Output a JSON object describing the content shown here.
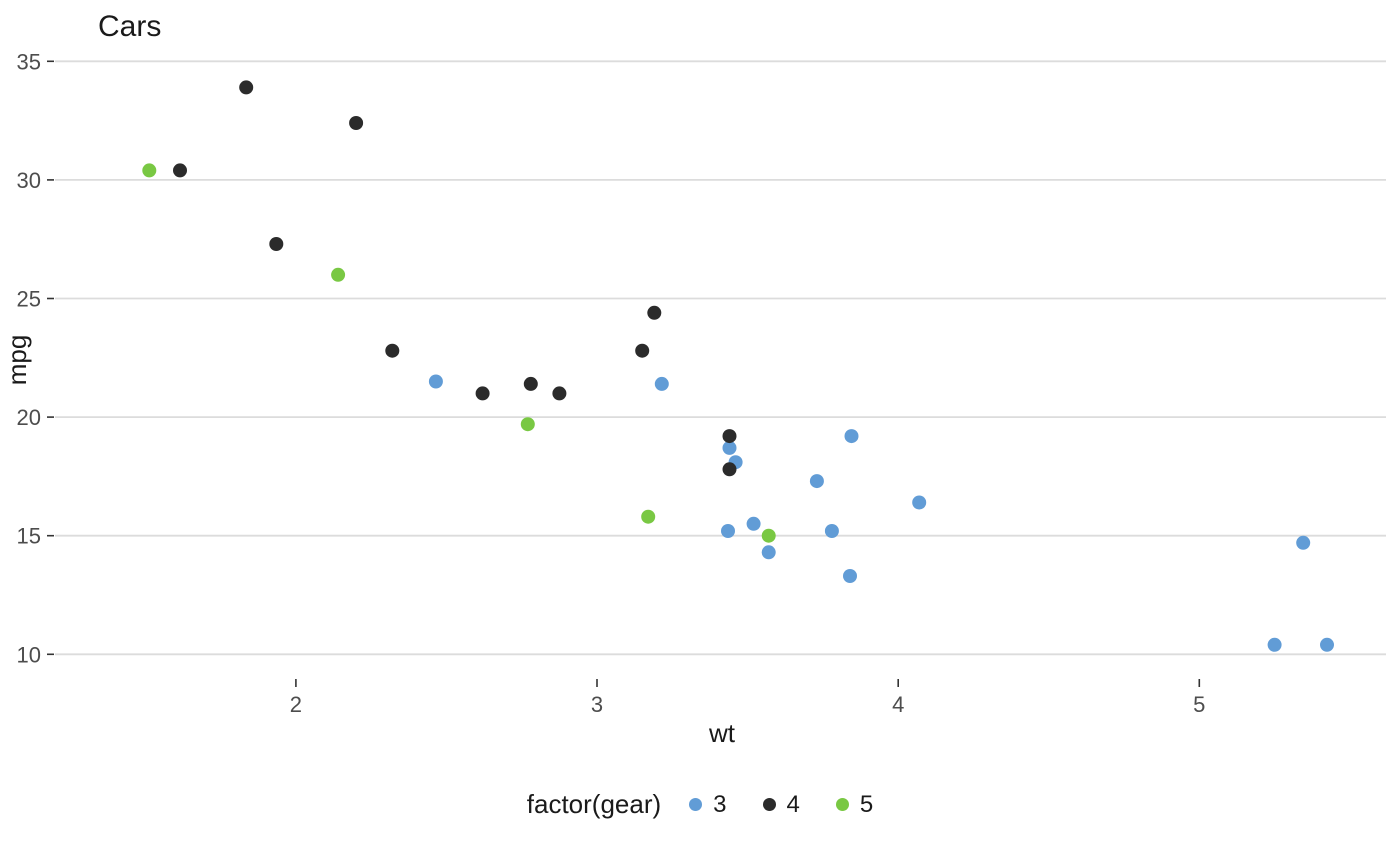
{
  "chart_data": {
    "type": "scatter",
    "title": "Cars",
    "xlabel": "wt",
    "ylabel": "mpg",
    "xlim": [
      1.2,
      5.62
    ],
    "ylim": [
      9.0,
      35.9
    ],
    "x_ticks": [
      2,
      3,
      4,
      5
    ],
    "y_ticks": [
      10,
      15,
      20,
      25,
      30,
      35
    ],
    "grid": "horizontal-only",
    "legend_title": "factor(gear)",
    "legend_position": "bottom",
    "point_radius": 7,
    "colors": {
      "gridline": "#DCDCDC",
      "tick": "#333333",
      "tick_text": "#4D4D4D",
      "title_text": "#1A1A1A"
    },
    "series": [
      {
        "name": "3",
        "color": "#619CD6",
        "points": [
          [
            2.465,
            21.5
          ],
          [
            3.215,
            21.4
          ],
          [
            3.44,
            18.7
          ],
          [
            3.46,
            18.1
          ],
          [
            3.52,
            15.5
          ],
          [
            3.435,
            15.2
          ],
          [
            3.57,
            14.3
          ],
          [
            3.73,
            17.3
          ],
          [
            3.78,
            15.2
          ],
          [
            3.84,
            13.3
          ],
          [
            3.845,
            19.2
          ],
          [
            4.07,
            16.4
          ],
          [
            5.25,
            10.4
          ],
          [
            5.345,
            14.7
          ],
          [
            5.424,
            10.4
          ]
        ]
      },
      {
        "name": "4",
        "color": "#2B2B2B",
        "points": [
          [
            1.615,
            30.4
          ],
          [
            1.835,
            33.9
          ],
          [
            1.935,
            27.3
          ],
          [
            2.2,
            32.4
          ],
          [
            2.32,
            22.8
          ],
          [
            2.62,
            21.0
          ],
          [
            2.78,
            21.4
          ],
          [
            2.875,
            21.0
          ],
          [
            3.15,
            22.8
          ],
          [
            3.19,
            24.4
          ],
          [
            3.44,
            19.2
          ],
          [
            3.44,
            17.8
          ]
        ]
      },
      {
        "name": "5",
        "color": "#79C843",
        "points": [
          [
            1.513,
            30.4
          ],
          [
            2.14,
            26.0
          ],
          [
            2.77,
            19.7
          ],
          [
            3.17,
            15.8
          ],
          [
            3.57,
            15.0
          ]
        ]
      }
    ]
  }
}
